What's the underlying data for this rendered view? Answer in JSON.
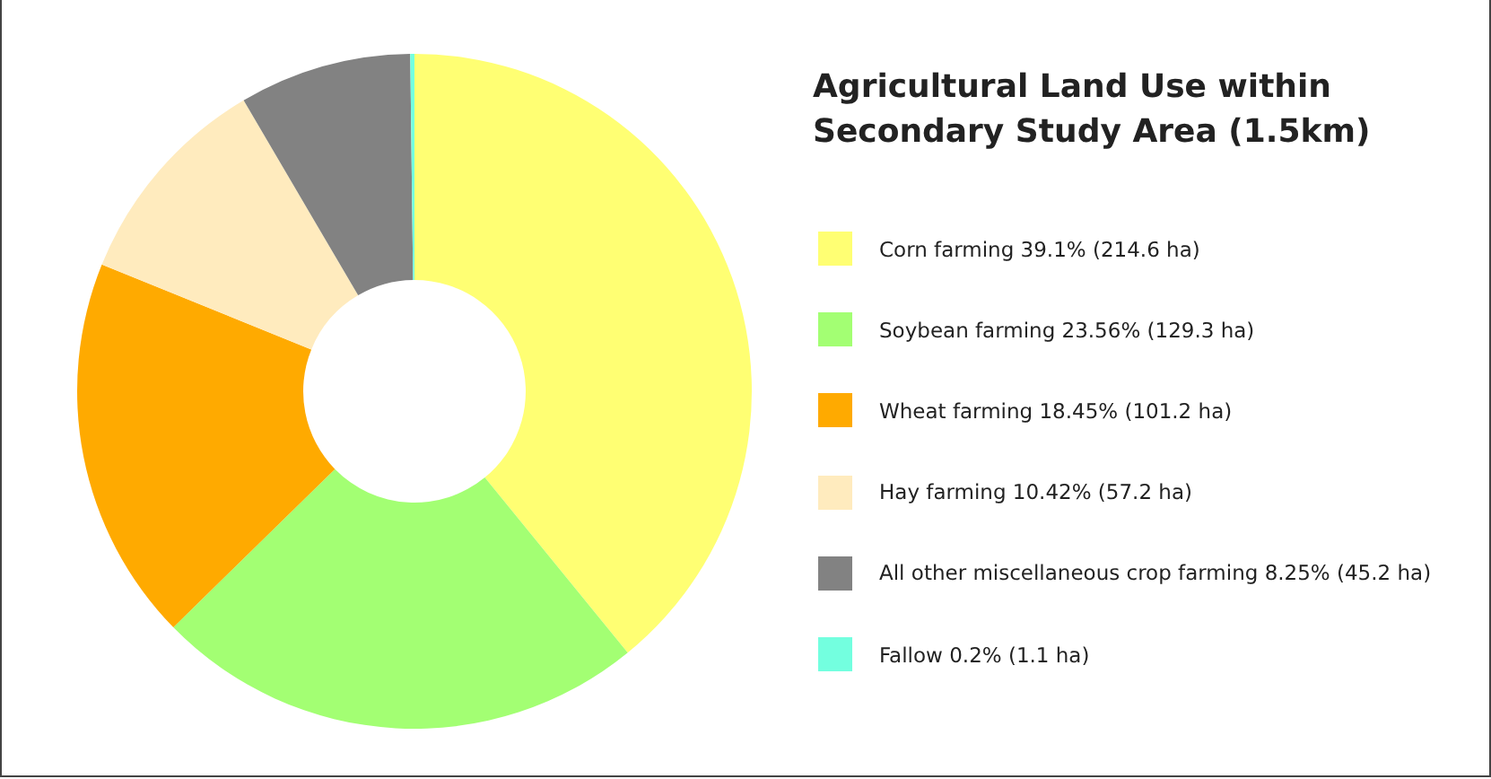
{
  "chart_data": {
    "type": "donut",
    "title": "Agricultural Land Use within Secondary Study Area (1.5km)",
    "categories": [
      "Corn farming",
      "Soybean farming",
      "Wheat farming",
      "Hay farming",
      "All other miscellaneous crop farming",
      "Fallow"
    ],
    "values": [
      39.1,
      23.56,
      18.45,
      10.42,
      8.25,
      0.2
    ],
    "value_labels": [
      "39.1% (214.6 ha)",
      "23.56% (129.3 ha)",
      "18.45% (101.2 ha)",
      "10.42% (57.2 ha)",
      "8.25% (45.2 ha)",
      "0.2% (1.1 ha)"
    ],
    "colors": [
      "#ffff73",
      "#a3ff73",
      "#ffaa00",
      "#ffebbe",
      "#828282",
      "#73ffdf"
    ],
    "legend": "right"
  }
}
